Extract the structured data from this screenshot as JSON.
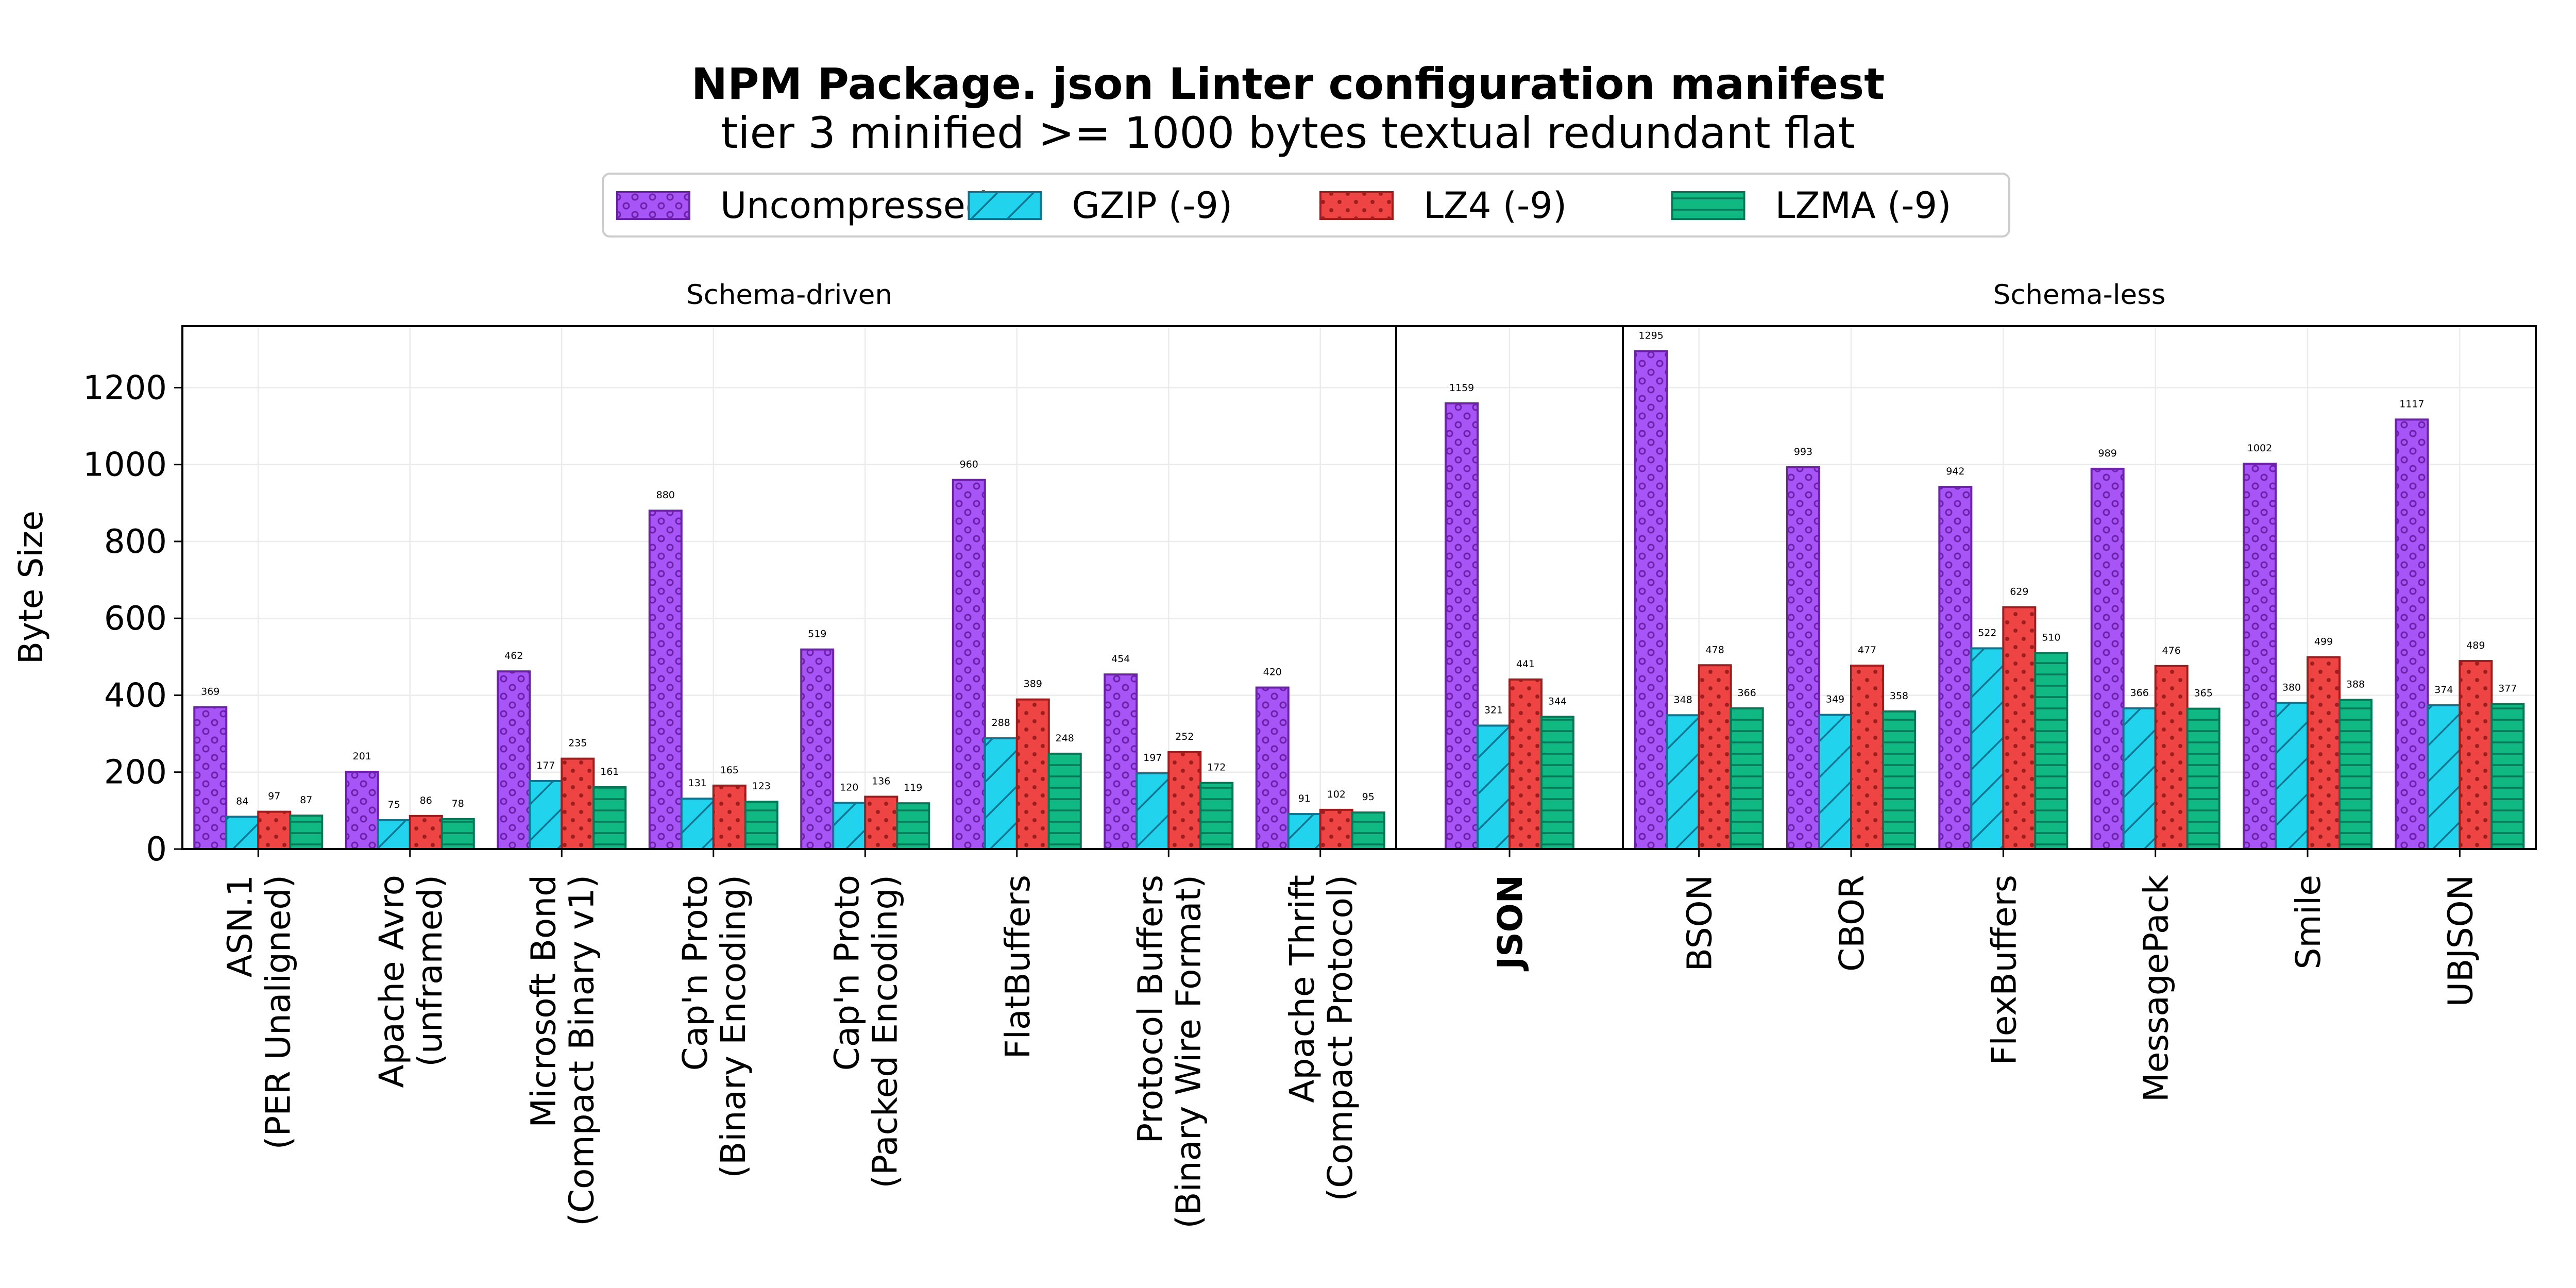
{
  "chart_data": {
    "type": "bar",
    "title": "NPM Package. json Linter configuration manifest",
    "subtitle": "tier 3 minified >= 1000 bytes textual redundant flat",
    "ylabel": "Byte Size",
    "ylim": [
      0,
      1360
    ],
    "yticks": [
      "0",
      "200",
      "400",
      "600",
      "800",
      "1000",
      "1200"
    ],
    "grid": true,
    "legend_position": "top-center",
    "series": [
      {
        "name": "Uncompressed",
        "color": "#a855f7",
        "edge": "#6b21a8",
        "pattern": "circles"
      },
      {
        "name": "GZIP (-9)",
        "color": "#22d3ee",
        "edge": "#0e7490",
        "pattern": "diagonal"
      },
      {
        "name": "LZ4 (-9)",
        "color": "#ef4444",
        "edge": "#9f1d1d",
        "pattern": "dots"
      },
      {
        "name": "LZMA (-9)",
        "color": "#10b981",
        "edge": "#047857",
        "pattern": "horizontal"
      }
    ],
    "panels": [
      {
        "title": "Schema-driven",
        "categories": [
          {
            "label": [
              "ASN.1",
              "(PER Unaligned)"
            ],
            "values": [
              369,
              84,
              97,
              87
            ]
          },
          {
            "label": [
              "Apache Avro",
              "(unframed)"
            ],
            "values": [
              201,
              75,
              86,
              78
            ]
          },
          {
            "label": [
              "Microsoft Bond",
              "(Compact Binary v1)"
            ],
            "values": [
              462,
              177,
              235,
              161
            ]
          },
          {
            "label": [
              "Cap'n Proto",
              "(Binary Encoding)"
            ],
            "values": [
              880,
              131,
              165,
              123
            ]
          },
          {
            "label": [
              "Cap'n Proto",
              "(Packed Encoding)"
            ],
            "values": [
              519,
              120,
              136,
              119
            ]
          },
          {
            "label": [
              "FlatBuffers"
            ],
            "values": [
              960,
              288,
              389,
              248
            ]
          },
          {
            "label": [
              "Protocol Buffers",
              "(Binary Wire Format)"
            ],
            "values": [
              454,
              197,
              252,
              172
            ]
          },
          {
            "label": [
              "Apache Thrift",
              "(Compact Protocol)"
            ],
            "values": [
              420,
              91,
              102,
              95
            ]
          }
        ]
      },
      {
        "title": "",
        "categories": [
          {
            "label": [
              "JSON"
            ],
            "bold": true,
            "values": [
              1159,
              321,
              441,
              344
            ]
          }
        ]
      },
      {
        "title": "Schema-less",
        "categories": [
          {
            "label": [
              "BSON"
            ],
            "values": [
              1295,
              348,
              478,
              366
            ]
          },
          {
            "label": [
              "CBOR"
            ],
            "values": [
              993,
              349,
              477,
              358
            ]
          },
          {
            "label": [
              "FlexBuffers"
            ],
            "values": [
              942,
              522,
              629,
              510
            ]
          },
          {
            "label": [
              "MessagePack"
            ],
            "values": [
              989,
              366,
              476,
              365
            ]
          },
          {
            "label": [
              "Smile"
            ],
            "values": [
              1002,
              380,
              499,
              388
            ]
          },
          {
            "label": [
              "UBJSON"
            ],
            "values": [
              1117,
              374,
              489,
              377
            ]
          }
        ]
      }
    ]
  }
}
